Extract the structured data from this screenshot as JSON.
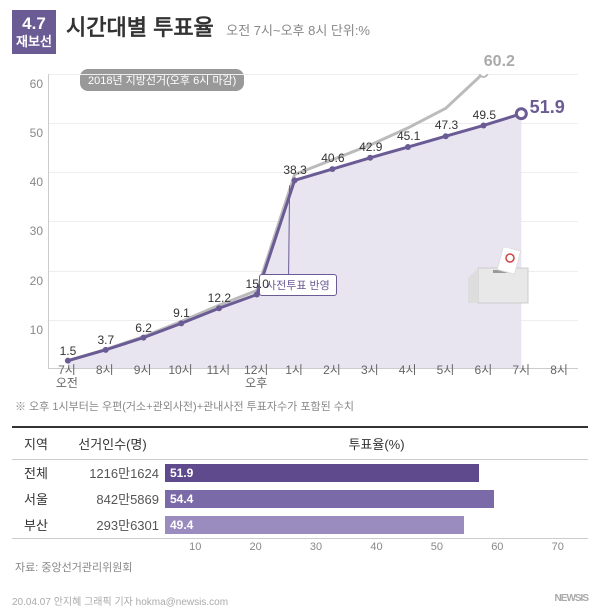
{
  "header": {
    "date_top": "4.7",
    "date_bottom": "재보선",
    "title": "시간대별 투표율",
    "subtitle": "오전 7시~오후 8시 단위:%"
  },
  "legend": "2018년 지방선거(오후 6시 마감)",
  "chart": {
    "type": "line",
    "ylim_min": 0,
    "ylim_max": 60,
    "ytick_step": 10,
    "y_ticks": [
      10,
      20,
      30,
      40,
      50,
      60
    ],
    "area_fill": "#e8e4f0",
    "x_labels": [
      "7시",
      "8시",
      "9시",
      "10시",
      "11시",
      "12시",
      "1시",
      "2시",
      "3시",
      "4시",
      "5시",
      "6시",
      "7시",
      "8시"
    ],
    "x_sub_left": "오전",
    "x_sub_right": "오후",
    "main_series": {
      "color": "#6b5b95",
      "width": 3,
      "marker_color": "#6b5b95",
      "values": [
        1.5,
        3.7,
        6.2,
        9.1,
        12.2,
        15.0,
        38.3,
        40.6,
        42.9,
        45.1,
        47.3,
        49.5,
        51.9
      ],
      "labels": [
        "1.5",
        "3.7",
        "6.2",
        "9.1",
        "12.2",
        "15.0",
        "38.3",
        "40.6",
        "42.9",
        "45.1",
        "47.3",
        "49.5",
        "51.9"
      ]
    },
    "compare_series": {
      "color": "#bbb",
      "width": 3,
      "values": [
        1.5,
        3.8,
        6.4,
        9.5,
        12.8,
        15.8,
        39.5,
        42.5,
        45.5,
        49.0,
        53.0,
        60.2
      ],
      "final_label": "60.2"
    },
    "callout": "사전투표 반영"
  },
  "footnote": "※ 오후 1시부터는 우편(거소+관외사전)+관내사전 투표자수가 포함된 수치",
  "table": {
    "headers": [
      "지역",
      "선거인수(명)",
      "투표율(%)"
    ],
    "bar_max": 70,
    "bar_ticks": [
      "10",
      "20",
      "30",
      "40",
      "50",
      "60",
      "70"
    ],
    "rows": [
      {
        "region": "전체",
        "voters": "1216만1624",
        "turnout": 51.9,
        "label": "51.9",
        "color": "#5e4a8c"
      },
      {
        "region": "서울",
        "voters": "842만5869",
        "turnout": 54.4,
        "label": "54.4",
        "color": "#7b6aa8"
      },
      {
        "region": "부산",
        "voters": "293만6301",
        "turnout": 49.4,
        "label": "49.4",
        "color": "#9b8cbf"
      }
    ]
  },
  "source": "자료: 중앙선거관리위원회",
  "footer": {
    "left": "20.04.07  안지혜 그래픽 기자  hokma@newsis.com",
    "right": "NEWSIS"
  }
}
